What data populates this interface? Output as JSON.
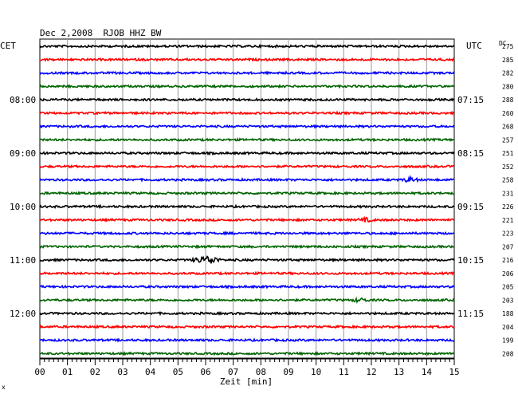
{
  "chart_data": {
    "type": "line",
    "title": "Dec 2,2008  RJOB HHZ BW",
    "left_header": "CET",
    "right_header": "UTC",
    "dc_header": "DC",
    "xlabel": "Zeit [min]",
    "xlim": [
      0,
      15
    ],
    "x_ticks": [
      "00",
      "01",
      "02",
      "03",
      "04",
      "05",
      "06",
      "07",
      "08",
      "09",
      "10",
      "11",
      "12",
      "13",
      "14",
      "15"
    ],
    "line_colors": [
      "#000000",
      "#ff0000",
      "#0000ff",
      "#006400"
    ],
    "traces_per_hour": 4,
    "trace_dc": [
      "275",
      "285",
      "282",
      "280",
      "288",
      "260",
      "268",
      "257",
      "251",
      "252",
      "258",
      "231",
      "226",
      "221",
      "223",
      "207",
      "216",
      "206",
      "205",
      "203",
      "188",
      "204",
      "199",
      "208"
    ],
    "left_hour_labels": [
      {
        "trace": 4,
        "label": "08:00"
      },
      {
        "trace": 8,
        "label": "09:00"
      },
      {
        "trace": 12,
        "label": "10:00"
      },
      {
        "trace": 16,
        "label": "11:00"
      },
      {
        "trace": 20,
        "label": "12:00"
      }
    ],
    "right_hour_labels": [
      {
        "trace": 4,
        "label": "07:15"
      },
      {
        "trace": 8,
        "label": "08:15"
      },
      {
        "trace": 12,
        "label": "09:15"
      },
      {
        "trace": 16,
        "label": "10:15"
      },
      {
        "trace": 20,
        "label": "11:15"
      }
    ],
    "events": [
      {
        "trace": 16,
        "minute": 6.2,
        "amplitude": 5
      },
      {
        "trace": 16,
        "minute": 5.8,
        "amplitude": 3
      },
      {
        "trace": 10,
        "minute": 13.4,
        "amplitude": 2.5
      },
      {
        "trace": 13,
        "minute": 11.8,
        "amplitude": 2
      },
      {
        "trace": 19,
        "minute": 11.6,
        "amplitude": 2
      }
    ],
    "grid": true
  },
  "footer_mark": "x"
}
